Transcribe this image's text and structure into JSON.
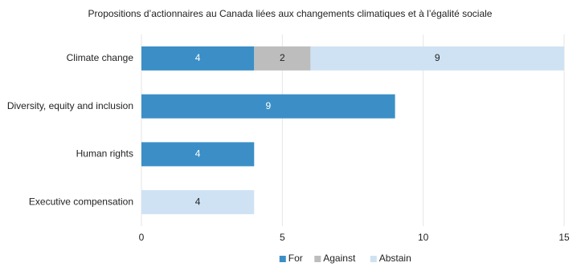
{
  "chart_data": {
    "type": "bar",
    "orientation": "horizontal",
    "stacked": true,
    "title": "Propositions  d’actionnaires  au Canada  liées aux changements  climatiques  et à l’égalité  sociale",
    "categories": [
      "Climate change",
      "Diversity, equity and inclusion",
      "Human rights",
      "Executive compensation"
    ],
    "series": [
      {
        "name": "For",
        "color": "#3b8fc6",
        "label_color": "#ffffff",
        "values": [
          4,
          9,
          4,
          null
        ]
      },
      {
        "name": "Against",
        "color": "#bdbdbd",
        "label_color": "#222222",
        "values": [
          2,
          null,
          null,
          null
        ]
      },
      {
        "name": "Abstain",
        "color": "#cfe2f3",
        "label_color": "#222222",
        "values": [
          9,
          null,
          null,
          4
        ]
      }
    ],
    "xlim": [
      0,
      15
    ],
    "xticks": [
      0,
      5,
      10,
      15
    ],
    "grid": true,
    "legend": "bottom"
  }
}
